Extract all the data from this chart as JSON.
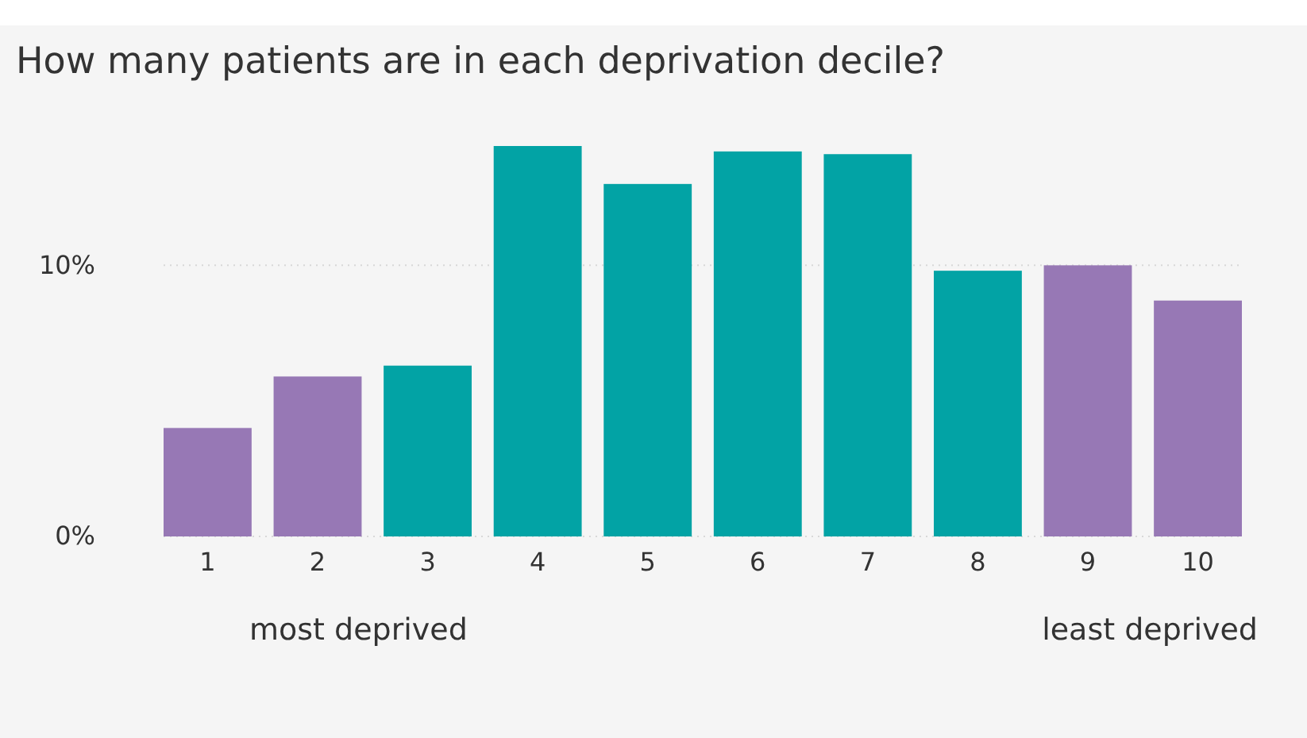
{
  "chart_data": {
    "type": "bar",
    "title": "How many patients are in each deprivation decile?",
    "categories": [
      "1",
      "2",
      "3",
      "4",
      "5",
      "6",
      "7",
      "8",
      "9",
      "10"
    ],
    "values": [
      4.0,
      5.9,
      6.3,
      14.4,
      13.0,
      14.2,
      14.1,
      9.8,
      10.0,
      8.7
    ],
    "colors": [
      "#9778b5",
      "#9778b5",
      "#02a3a5",
      "#02a3a5",
      "#02a3a5",
      "#02a3a5",
      "#02a3a5",
      "#02a3a5",
      "#9778b5",
      "#9778b5"
    ],
    "ylim": [
      0,
      14.4
    ],
    "yticks": [
      {
        "value": 0,
        "label": "0%"
      },
      {
        "value": 10,
        "label": "10%"
      }
    ],
    "grid": "y",
    "annotations": [
      "most deprived",
      "least deprived"
    ]
  }
}
